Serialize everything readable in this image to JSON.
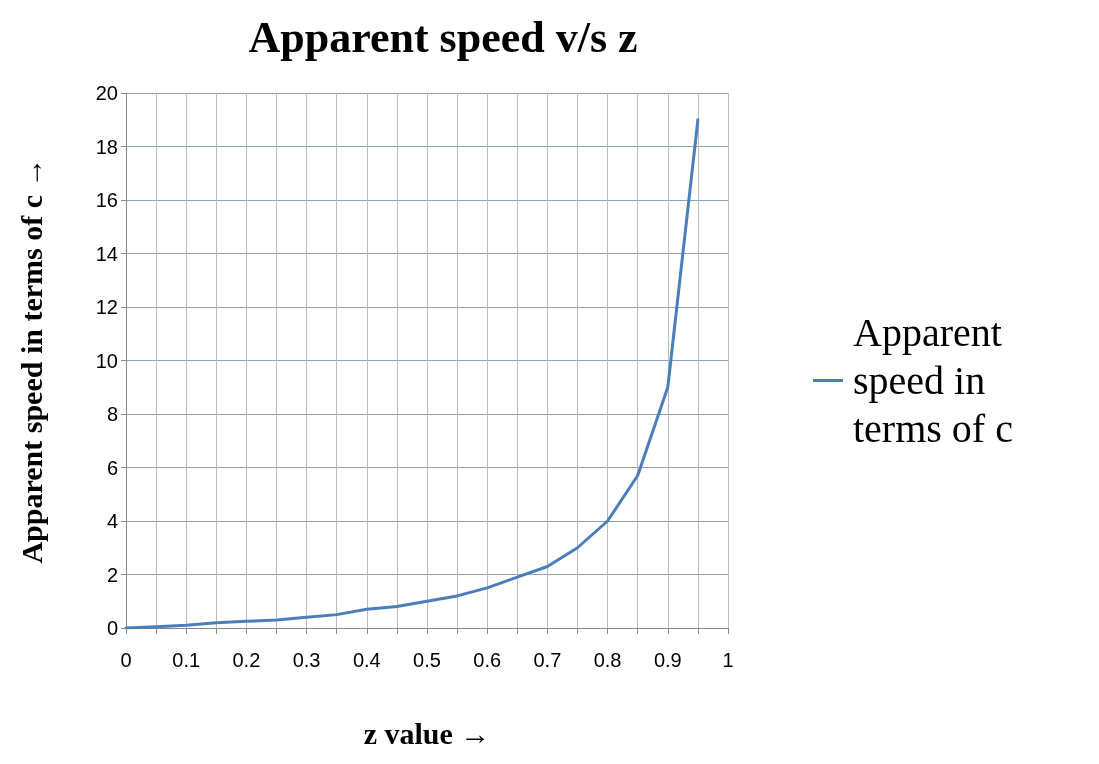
{
  "chart_data": {
    "type": "line",
    "title": "Apparent speed v/s z",
    "xlabel": "z value →",
    "ylabel": "Apparent speed in terms of c →",
    "x": [
      0,
      0.05,
      0.1,
      0.15,
      0.2,
      0.25,
      0.3,
      0.35,
      0.4,
      0.45,
      0.5,
      0.55,
      0.6,
      0.65,
      0.7,
      0.75,
      0.8,
      0.85,
      0.9,
      0.95
    ],
    "series": [
      {
        "name": "Apparent speed in terms of c",
        "color": "#4a7ebb",
        "values": [
          0,
          0.05,
          0.1,
          0.2,
          0.25,
          0.3,
          0.4,
          0.5,
          0.7,
          0.8,
          1,
          1.2,
          1.5,
          1.9,
          2.3,
          3,
          4,
          5.7,
          9,
          19
        ]
      }
    ],
    "xlim": [
      0,
      1
    ],
    "xticks": [
      0,
      {
        "value": 0.05,
        "label": null
      },
      0.1,
      {
        "value": 0.15,
        "label": null
      },
      0.2,
      {
        "value": 0.25,
        "label": null
      },
      0.3,
      {
        "value": 0.35,
        "label": null
      },
      0.4,
      {
        "value": 0.45,
        "label": null
      },
      0.5,
      {
        "value": 0.55,
        "label": null
      },
      0.6,
      {
        "value": 0.65,
        "label": null
      },
      0.7,
      {
        "value": 0.75,
        "label": null
      },
      0.8,
      {
        "value": 0.85,
        "label": null
      },
      0.9,
      {
        "value": 0.95,
        "label": null
      },
      1
    ],
    "ylim": [
      0,
      20
    ],
    "yticks": [
      0,
      2,
      4,
      6,
      8,
      10,
      12,
      14,
      16,
      18,
      20
    ],
    "grid": true,
    "legend": "right",
    "marker": "none",
    "line_style": "solid"
  }
}
